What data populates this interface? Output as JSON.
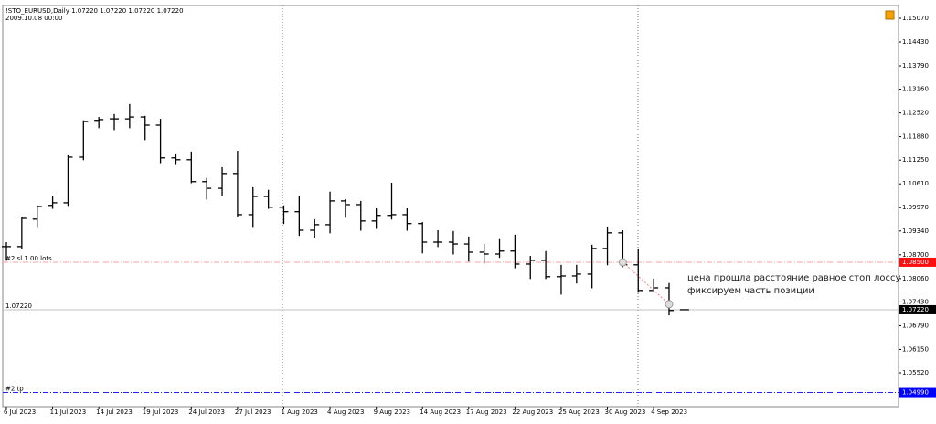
{
  "chart_data": {
    "type": "ohlc",
    "title": "!STO_EURUSD,Daily  1.07220 1.07220 1.07220 1.07220",
    "subtitle": "2009.10.08 00:00",
    "categories": [
      "6 Jul 2023",
      null,
      null,
      "11 Jul 2023",
      null,
      null,
      "14 Jul 2023",
      null,
      null,
      "19 Jul 2023",
      null,
      null,
      "24 Jul 2023",
      null,
      null,
      "27 Jul 2023",
      null,
      null,
      "1 Aug 2023",
      null,
      null,
      "4 Aug 2023",
      null,
      null,
      "9 Aug 2023",
      null,
      null,
      "14 Aug 2023",
      null,
      null,
      "17 Aug 2023",
      null,
      null,
      "22 Aug 2023",
      null,
      null,
      "25 Aug 2023",
      null,
      null,
      "30 Aug 2023",
      null,
      null,
      "4 Sep 2023",
      null,
      null
    ],
    "open": [
      1.0892,
      1.0892,
      1.0966,
      1.1003,
      1.101,
      1.1133,
      1.1232,
      1.1236,
      1.1236,
      1.1241,
      1.1219,
      1.1131,
      1.1126,
      1.1067,
      1.1049,
      1.1089,
      1.0978,
      1.1027,
      1.0998,
      1.0986,
      1.0936,
      1.0951,
      1.1015,
      1.1005,
      1.0961,
      1.0976,
      1.0978,
      1.0954,
      1.0904,
      1.0904,
      1.0899,
      1.0877,
      1.0872,
      1.088,
      1.0845,
      1.0855,
      1.0811,
      1.0813,
      1.0818,
      1.0887,
      1.0929,
      1.0843,
      1.0774,
      1.0781,
      1.0722
    ],
    "high": [
      1.0904,
      1.0973,
      1.1003,
      1.1027,
      1.1138,
      1.1232,
      1.1241,
      1.1249,
      1.1276,
      1.1244,
      1.1236,
      1.1143,
      1.1148,
      1.1077,
      1.1106,
      1.115,
      1.1052,
      1.1045,
      1.1003,
      1.1027,
      1.0966,
      1.104,
      1.102,
      1.1015,
      1.0995,
      1.1064,
      1.0995,
      1.0958,
      1.0936,
      1.0934,
      1.0919,
      1.0899,
      1.0912,
      1.0924,
      1.0867,
      1.088,
      1.0843,
      1.0843,
      1.0897,
      1.0946,
      1.0936,
      1.0887,
      1.0806,
      1.0794,
      1.0722
    ],
    "low": [
      1.0855,
      1.0887,
      1.0946,
      1.0995,
      1.1003,
      1.1126,
      1.1212,
      1.1207,
      1.1212,
      1.118,
      1.1118,
      1.1113,
      1.1064,
      1.102,
      1.103,
      1.0973,
      1.0946,
      1.0995,
      1.0954,
      1.0922,
      1.0917,
      1.0929,
      1.0971,
      1.0936,
      1.0941,
      1.0966,
      1.0936,
      1.0875,
      1.0892,
      1.0872,
      1.0853,
      1.0848,
      1.0863,
      1.0835,
      1.0806,
      1.0806,
      1.0764,
      1.0794,
      1.0781,
      1.0843,
      1.0838,
      1.0769,
      1.0774,
      1.0708,
      1.0722
    ],
    "close": [
      1.0892,
      1.0968,
      1.1,
      1.101,
      1.1133,
      1.1229,
      1.1234,
      1.1236,
      1.1241,
      1.1219,
      1.1131,
      1.1126,
      1.1067,
      1.1049,
      1.1089,
      1.0978,
      1.1027,
      1.0998,
      1.0986,
      1.0936,
      1.0951,
      1.1015,
      1.1005,
      1.0961,
      1.0976,
      1.0978,
      1.0954,
      1.0904,
      1.0904,
      1.0899,
      1.0877,
      1.0872,
      1.088,
      1.0845,
      1.0855,
      1.0811,
      1.0813,
      1.0818,
      1.0887,
      1.0929,
      1.0843,
      1.0774,
      1.0781,
      1.072,
      1.0722
    ],
    "color": "#000000",
    "ylim": [
      1.0461,
      1.15365
    ],
    "yticks": [
      {
        "value": 1.1507,
        "label": "1.15070"
      },
      {
        "value": 1.1443,
        "label": "1.14430"
      },
      {
        "value": 1.1379,
        "label": "1.13790"
      },
      {
        "value": 1.1316,
        "label": "1.13160"
      },
      {
        "value": 1.1252,
        "label": "1.12520"
      },
      {
        "value": 1.1188,
        "label": "1.11880"
      },
      {
        "value": 1.1125,
        "label": "1.11250"
      },
      {
        "value": 1.1061,
        "label": "1.10610"
      },
      {
        "value": 1.0997,
        "label": "1.09970"
      },
      {
        "value": 1.0934,
        "label": "1.09340"
      },
      {
        "value": 1.087,
        "label": "1.08700"
      },
      {
        "value": 1.0806,
        "label": "1.08060"
      },
      {
        "value": 1.0743,
        "label": "1.07430"
      },
      {
        "value": 1.0679,
        "label": "1.06790"
      },
      {
        "value": 1.0615,
        "label": "1.06150"
      },
      {
        "value": 1.0552,
        "label": "1.05520"
      }
    ],
    "levels": [
      {
        "value": 1.085,
        "label": "1.08500",
        "text": "#2 sl 1.00 lots",
        "color": "#f4a0a0",
        "tag_color": "#ff1010"
      },
      {
        "value": 1.0722,
        "label": "1.07220",
        "color": "#c0c0c0",
        "tag_color": "#000000"
      },
      {
        "value": 1.0499,
        "label": "1.04990",
        "text": "#2 tp",
        "color": "#2020ff",
        "tag_color": "#0000ff"
      }
    ],
    "trade": {
      "open": 1.085,
      "close": 1.0737,
      "color": "#f08080"
    },
    "annotation": [
      "цена прошла расстояние равное стоп лоссу",
      "фиксируем часть позиции"
    ]
  }
}
